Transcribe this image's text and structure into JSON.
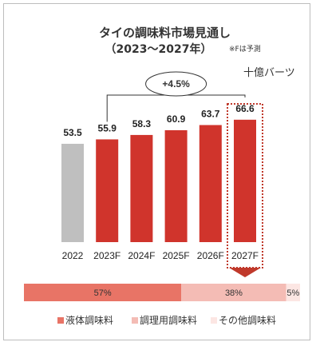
{
  "title": "タイの調味料市場見通し",
  "subtitle": "（2023〜2027年）",
  "forecast_note": "※Fは予測",
  "unit": "十億バーツ",
  "cagr_label": "+4.5%",
  "chart_data": {
    "type": "bar",
    "title": "タイの調味料市場見通し",
    "categories": [
      "2022",
      "2023F",
      "2024F",
      "2025F",
      "2026F",
      "2027F"
    ],
    "values": [
      53.5,
      55.9,
      58.3,
      60.9,
      63.7,
      66.6
    ],
    "value_labels": [
      "53.5",
      "55.9",
      "58.3",
      "60.9",
      "63.7",
      "66.6"
    ],
    "colors": [
      "#bfbfbf",
      "#d0342c",
      "#d0342c",
      "#d0342c",
      "#d0342c",
      "#d0342c"
    ],
    "ylim": [
      0,
      100
    ],
    "highlight_category": "2027F",
    "share_bar": {
      "segments": [
        {
          "name": "液体調味料",
          "value": 57,
          "label": "57%",
          "color": "#e87466"
        },
        {
          "name": "調理用調味料",
          "value": 38,
          "label": "38%",
          "color": "#f4bcb5"
        },
        {
          "name": "その他調味料",
          "value": 5,
          "label": "5%",
          "color": "#fce6e3"
        }
      ]
    }
  }
}
